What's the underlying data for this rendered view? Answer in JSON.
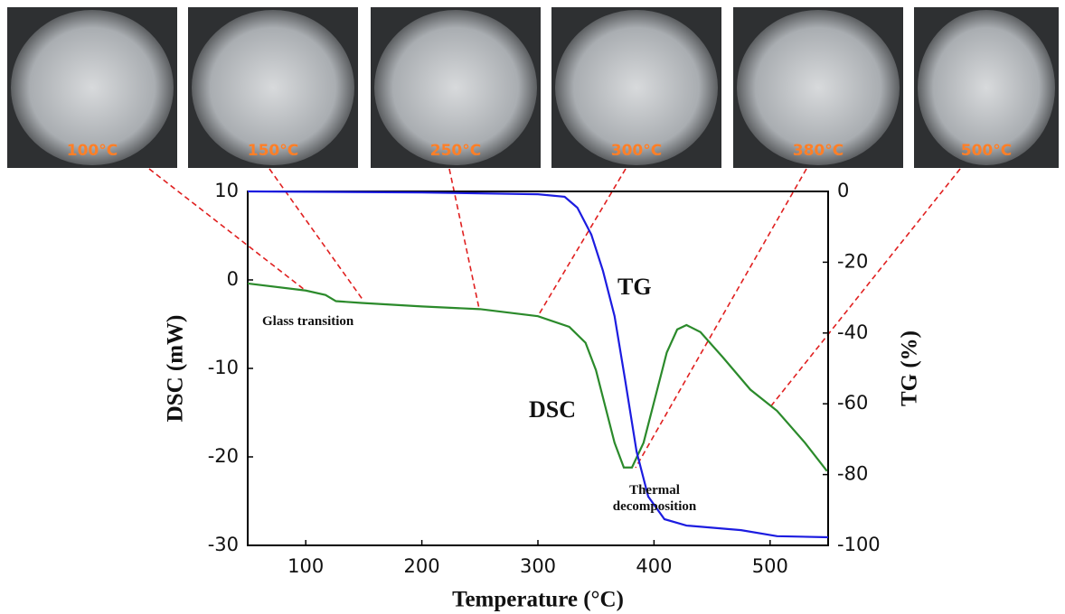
{
  "photos": [
    {
      "label": "100°C"
    },
    {
      "label": "150°C"
    },
    {
      "label": "250°C"
    },
    {
      "label": "300°C"
    },
    {
      "label": "380°C"
    },
    {
      "label": "500°C"
    }
  ],
  "chart_data": {
    "type": "line",
    "xlabel": "Temperature (°C)",
    "ylabel": "DSC (mW)",
    "y2label": "TG (%)",
    "xlim": [
      50,
      550
    ],
    "xticks": [
      100,
      200,
      300,
      400,
      500
    ],
    "ylim": [
      -30,
      10
    ],
    "yticks": [
      -30,
      -20,
      -10,
      0,
      10
    ],
    "y2lim": [
      -100,
      0
    ],
    "y2ticks": [
      -100,
      -80,
      -60,
      -40,
      -20,
      0
    ],
    "annotations": [
      [
        "Glass transition"
      ],
      [
        "Thermal",
        "decomposition"
      ]
    ],
    "series": [
      {
        "name": "DSC",
        "color": "#2b8a2b",
        "x": [
          50,
          100,
          117,
          126,
          148,
          200,
          250,
          300,
          327,
          341,
          350,
          358,
          366,
          374,
          381,
          391,
          401,
          411,
          420,
          428,
          440,
          459,
          483,
          506,
          530,
          549
        ],
        "values": [
          -0.4,
          -1.2,
          -1.7,
          -2.4,
          -2.6,
          -3.0,
          -3.3,
          -4.1,
          -5.3,
          -7.1,
          -10.2,
          -14.3,
          -18.4,
          -21.2,
          -21.2,
          -18.4,
          -13.3,
          -8.2,
          -5.6,
          -5.1,
          -5.9,
          -8.7,
          -12.4,
          -14.8,
          -18.4,
          -21.6
        ]
      },
      {
        "name": "TG",
        "color": "#1c1ce0",
        "axis": "y2",
        "x": [
          50,
          200,
          300,
          323,
          334,
          346,
          356,
          366,
          375,
          385,
          395,
          409,
          428,
          475,
          506,
          550
        ],
        "values": [
          0,
          -0.3,
          -0.8,
          -1.5,
          -4.6,
          -12.2,
          -22.4,
          -35.2,
          -53,
          -73.5,
          -86.2,
          -92.6,
          -94.4,
          -95.7,
          -97.4,
          -97.7
        ]
      }
    ]
  }
}
